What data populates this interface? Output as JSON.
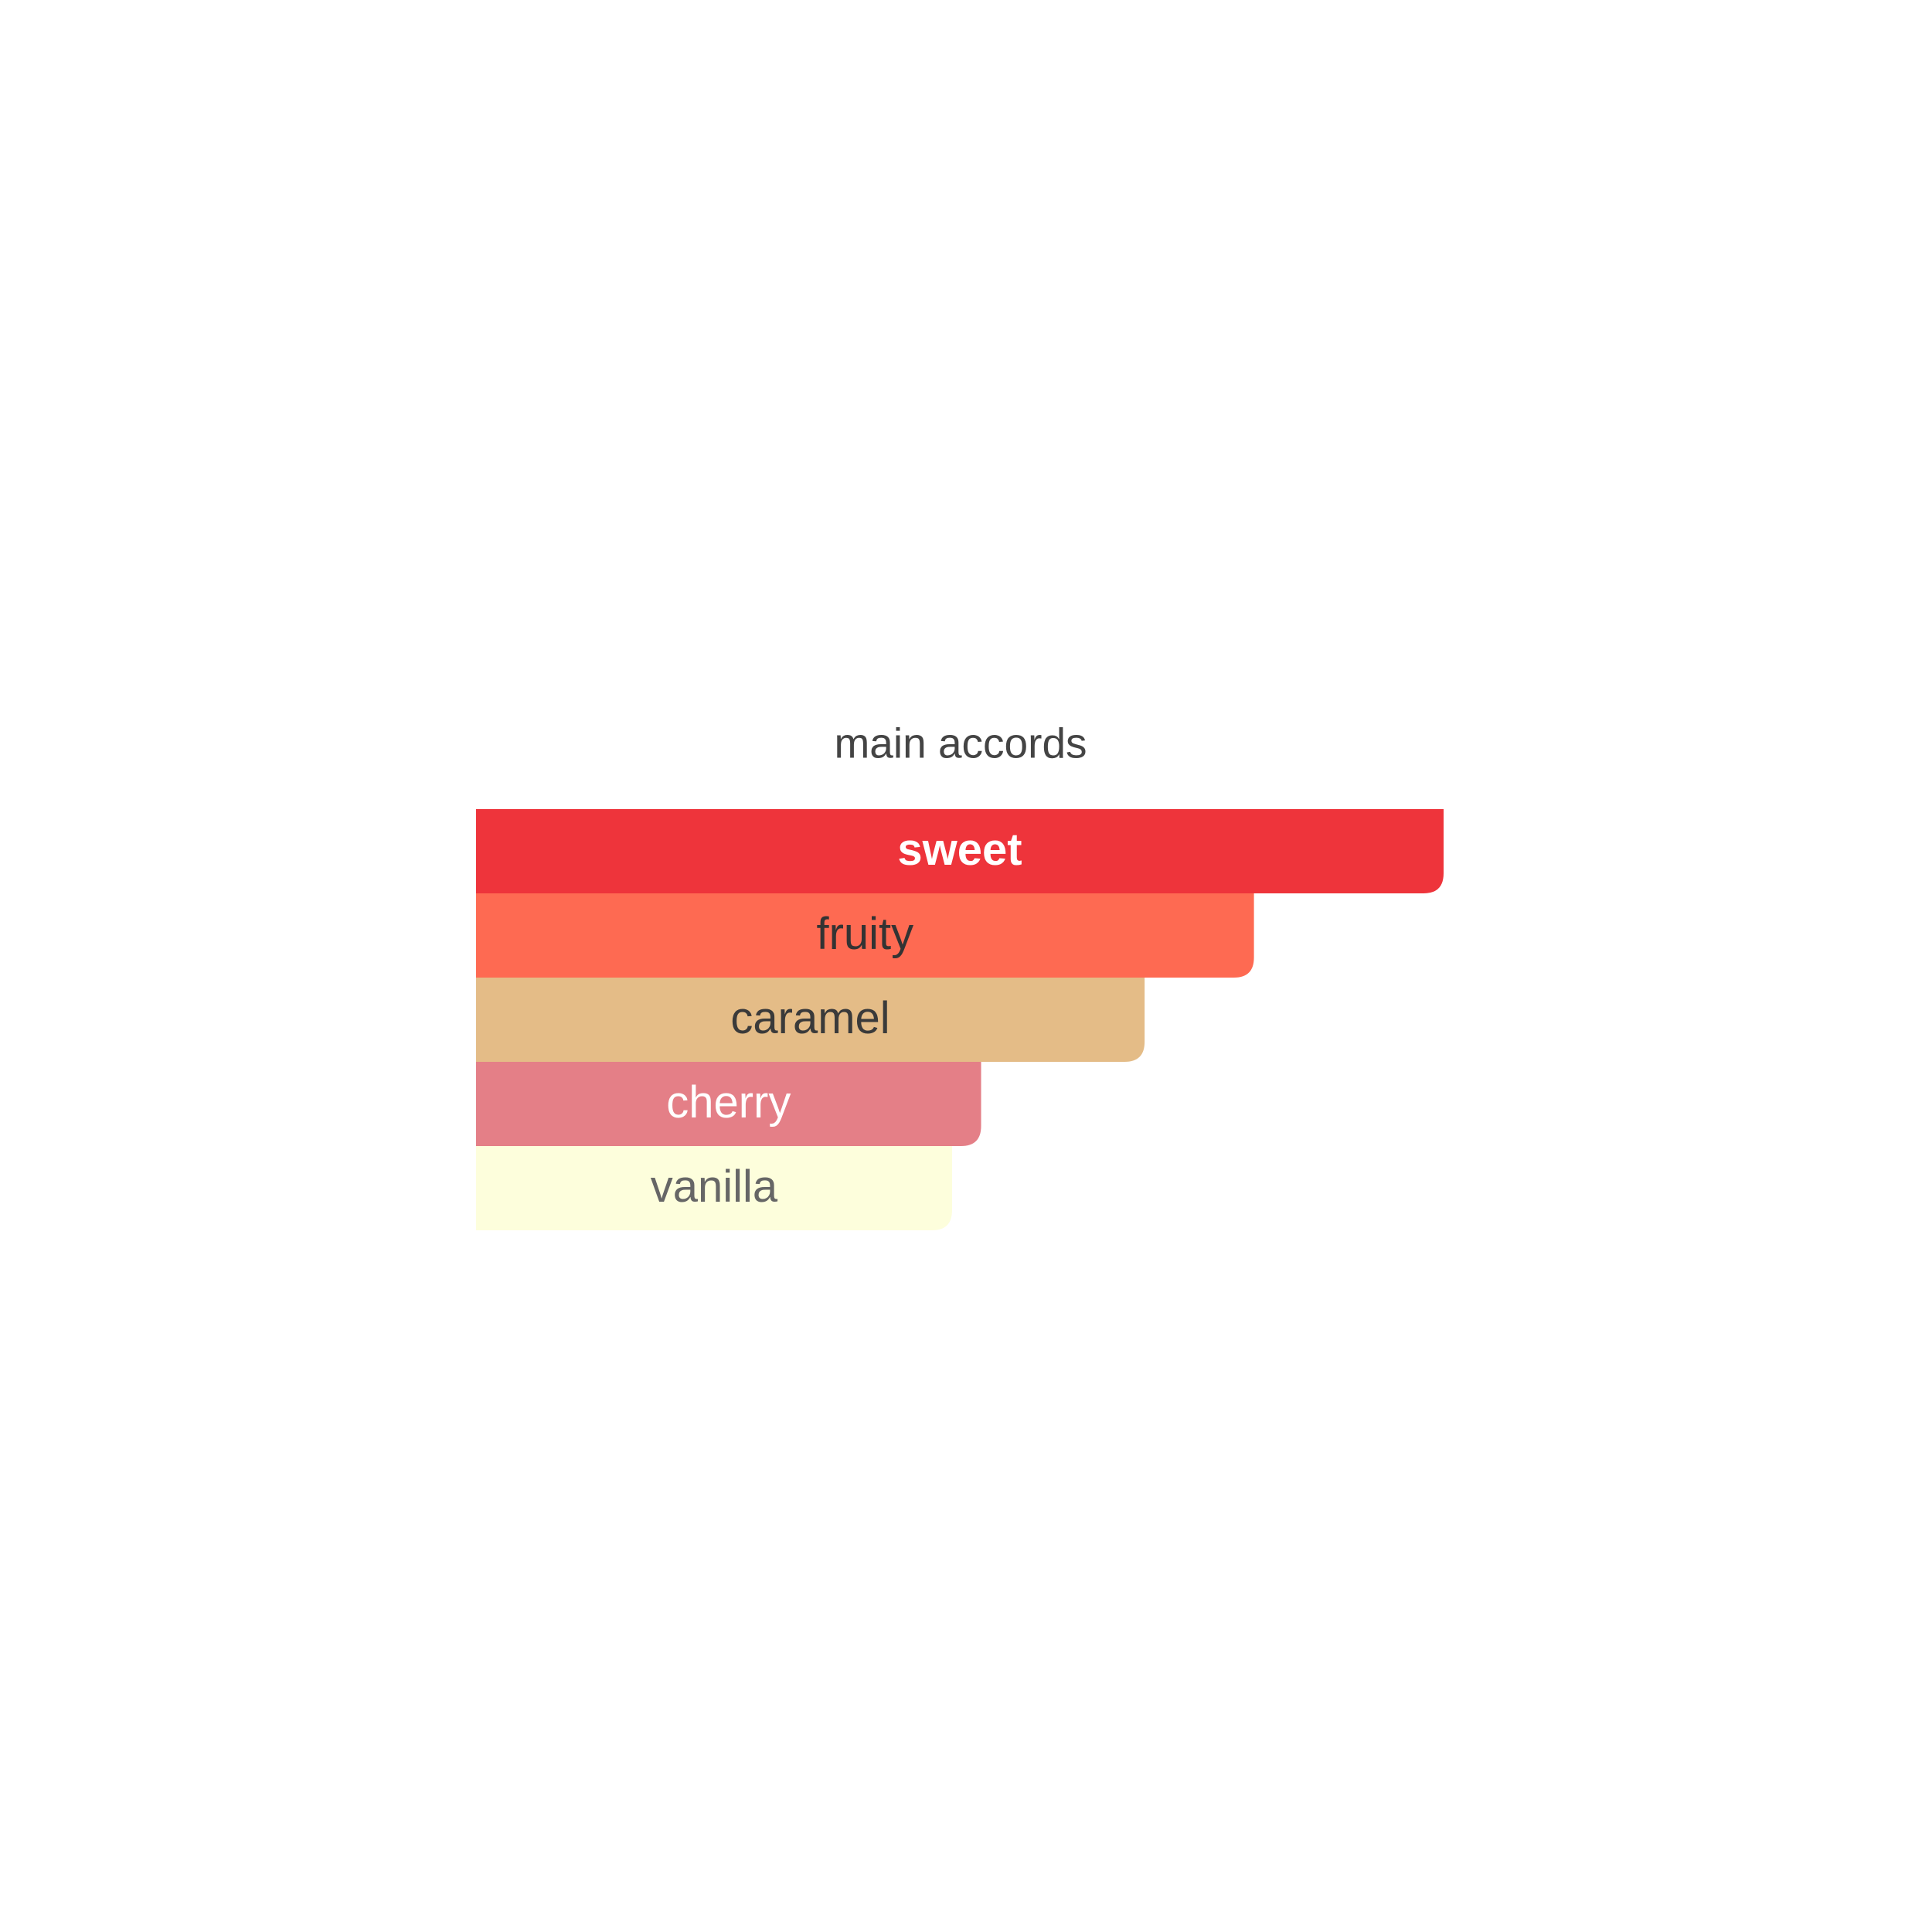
{
  "chart_data": {
    "type": "bar",
    "orientation": "horizontal",
    "title": "main accords",
    "categories": [
      "sweet",
      "fruity",
      "caramel",
      "cherry",
      "vanilla"
    ],
    "values": [
      100,
      80.4,
      69.1,
      52.2,
      49.2
    ],
    "colors": [
      "#ee343b",
      "#fe6a52",
      "#e4bc87",
      "#e47f87",
      "#fdfedc"
    ],
    "label_colors": [
      "#ffffff",
      "#333333",
      "#3a3a3a",
      "#ffffff",
      "#666666"
    ],
    "xlim": [
      0,
      100
    ]
  }
}
